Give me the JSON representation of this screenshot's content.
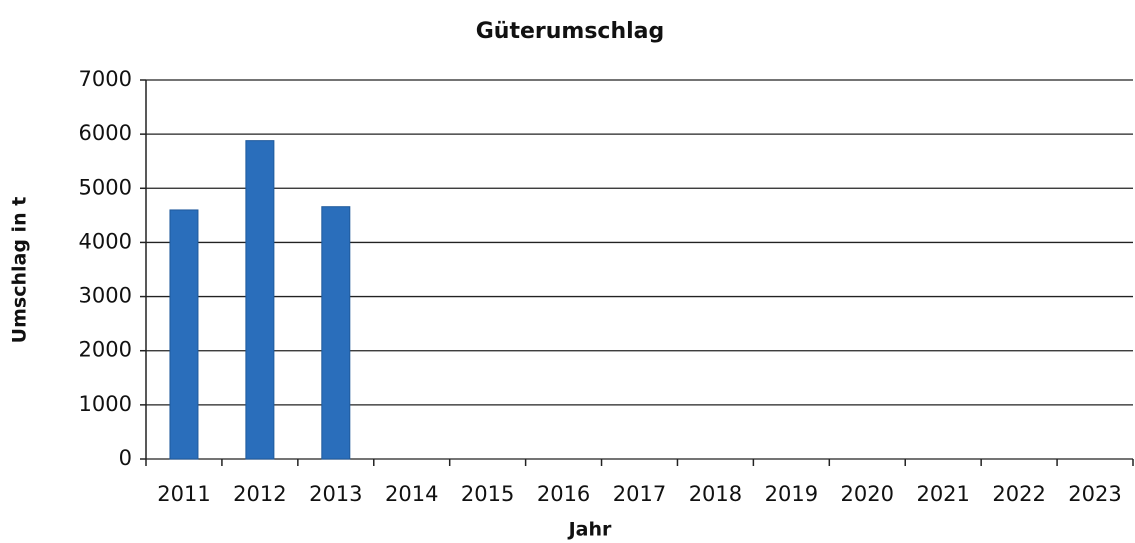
{
  "chart_data": {
    "type": "bar",
    "title": "Güterumschlag",
    "x_label": "Jahr",
    "y_label": "Umschlag in t",
    "categories": [
      "2011",
      "2012",
      "2013",
      "2014",
      "2015",
      "2016",
      "2017",
      "2018",
      "2019",
      "2020",
      "2021",
      "2022",
      "2023"
    ],
    "values": [
      4600,
      5880,
      4660,
      null,
      null,
      null,
      null,
      null,
      null,
      null,
      null,
      null,
      null
    ],
    "color": "#2a6ebb",
    "ylim": [
      0,
      7000
    ],
    "yticks": [
      0,
      1000,
      2000,
      3000,
      4000,
      5000,
      6000,
      7000
    ],
    "grid": true
  }
}
